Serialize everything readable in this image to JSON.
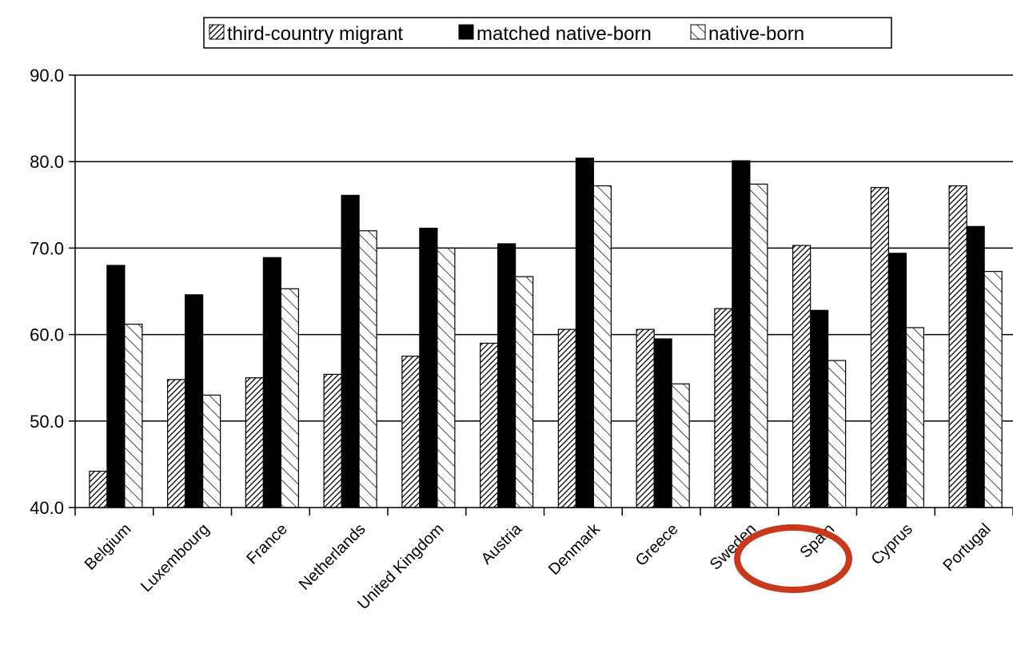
{
  "chart_data": {
    "type": "bar",
    "categories": [
      "Belgium",
      "Luxembourg",
      "France",
      "Netherlands",
      "United Kingdom",
      "Austria",
      "Denmark",
      "Greece",
      "Sweden",
      "Spain",
      "Cyprus",
      "Portugal"
    ],
    "series": [
      {
        "name": "third-country migrant",
        "pattern": "diagonal-dense",
        "values": [
          44.2,
          54.8,
          55.0,
          55.4,
          57.5,
          59.0,
          60.6,
          60.6,
          63.0,
          70.3,
          77.0,
          77.2
        ]
      },
      {
        "name": "matched native-born",
        "pattern": "solid",
        "values": [
          68.0,
          64.6,
          68.9,
          76.1,
          72.3,
          70.5,
          80.4,
          59.5,
          80.1,
          62.8,
          69.4,
          72.5
        ]
      },
      {
        "name": "native-born",
        "pattern": "diagonal-sparse",
        "values": [
          61.2,
          53.0,
          65.3,
          72.0,
          70.0,
          66.7,
          77.2,
          54.3,
          77.4,
          57.0,
          60.8,
          67.3
        ]
      }
    ],
    "yticks": [
      "40.0",
      "50.0",
      "60.0",
      "70.0",
      "80.0",
      "90.0"
    ],
    "ylim": [
      40,
      90
    ],
    "grid": true,
    "legend_position": "top",
    "highlight": {
      "category": "Spain",
      "shape": "circle",
      "color": "#c8381b"
    },
    "colors": {
      "bar_fill": "#000000",
      "pattern_bg": "#ffffff",
      "grid": "#000000"
    }
  }
}
